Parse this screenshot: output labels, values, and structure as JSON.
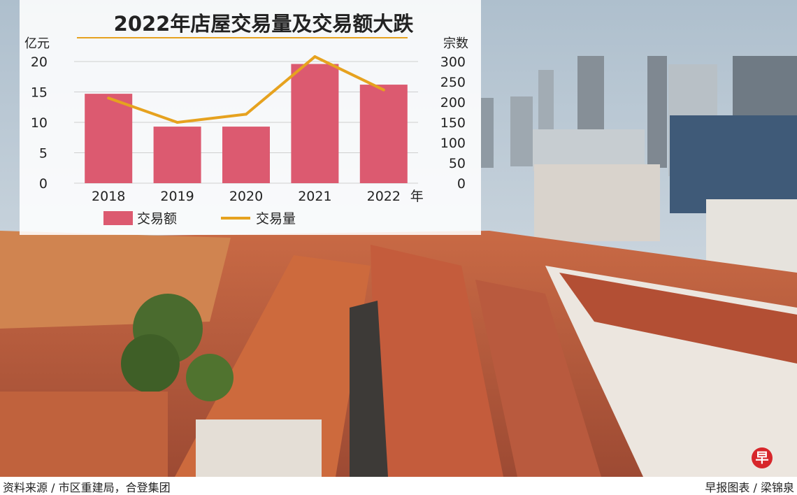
{
  "chart_data": {
    "type": "bar",
    "title": "2022年店屋交易量及交易额大跌",
    "categories": [
      "2018",
      "2019",
      "2020",
      "2021",
      "2022"
    ],
    "x_unit": "年",
    "ylabel": "亿元",
    "ylim": [
      0,
      20
    ],
    "y_ticks": [
      0,
      5,
      10,
      15,
      20
    ],
    "y2label": "宗数",
    "y2lim": [
      0,
      300
    ],
    "y2_ticks": [
      0,
      50,
      100,
      150,
      200,
      250,
      300
    ],
    "series": [
      {
        "name": "交易额",
        "type": "bar",
        "axis": "left",
        "values": [
          14.7,
          9.3,
          9.3,
          19.6,
          16.2
        ],
        "color": "#dc5a70"
      },
      {
        "name": "交易量",
        "type": "line",
        "axis": "right",
        "values": [
          210,
          150,
          170,
          312,
          230
        ],
        "color": "#e6a21f"
      }
    ],
    "grid": true,
    "legend": "bottom"
  },
  "footer": {
    "source": "资料来源 / 市区重建局，合登集团",
    "credit": "早报图表 / 梁锦泉"
  },
  "badge": {
    "text": "早"
  }
}
